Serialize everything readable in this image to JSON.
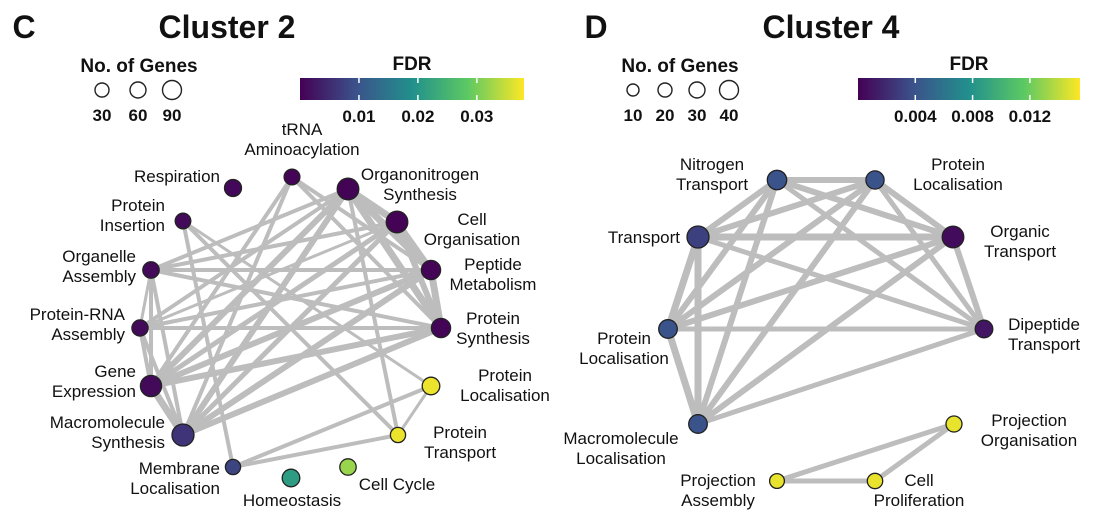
{
  "colors": {
    "viridis": [
      "#440154",
      "#3b528b",
      "#21908c",
      "#5dc963",
      "#fde725"
    ],
    "edge": "#bdbdbd"
  },
  "panels": [
    {
      "letter": "C",
      "title": "Cluster 2",
      "size_legend": {
        "title": "No. of Genes",
        "values": [
          "30",
          "60",
          "90"
        ]
      },
      "fdr_legend": {
        "title": "FDR",
        "ticks": [
          "0.01",
          "0.02",
          "0.03"
        ],
        "range": [
          0,
          0.038
        ]
      },
      "nodes": [
        {
          "id": "trna",
          "label": [
            "tRNA",
            "Aminoacylation"
          ],
          "fdr": 0.0005,
          "genes": 30
        },
        {
          "id": "respiration",
          "label": [
            "Respiration"
          ],
          "fdr": 0.0008,
          "genes": 40
        },
        {
          "id": "organonitrogen",
          "label": [
            "Organonitrogen",
            "Synthesis"
          ],
          "fdr": 0.0003,
          "genes": 90
        },
        {
          "id": "protein_insertion",
          "label": [
            "Protein",
            "Insertion"
          ],
          "fdr": 0.001,
          "genes": 28
        },
        {
          "id": "cell_organisation",
          "label": [
            "Cell",
            "Organisation"
          ],
          "fdr": 0.0002,
          "genes": 90
        },
        {
          "id": "organelle_assembly",
          "label": [
            "Organelle",
            "Assembly"
          ],
          "fdr": 0.001,
          "genes": 35
        },
        {
          "id": "peptide_metabolism",
          "label": [
            "Peptide",
            "Metabolism"
          ],
          "fdr": 0.0005,
          "genes": 60
        },
        {
          "id": "protein_rna_assembly",
          "label": [
            "Protein-RNA",
            "Assembly"
          ],
          "fdr": 0.001,
          "genes": 33
        },
        {
          "id": "protein_synthesis",
          "label": [
            "Protein",
            "Synthesis"
          ],
          "fdr": 0.0005,
          "genes": 60
        },
        {
          "id": "gene_expression",
          "label": [
            "Gene",
            "Expression"
          ],
          "fdr": 0.001,
          "genes": 85
        },
        {
          "id": "protein_localisation",
          "label": [
            "Protein",
            "Localisation"
          ],
          "fdr": 0.037,
          "genes": 45
        },
        {
          "id": "macromolecule_synthesis",
          "label": [
            "Macromolecule",
            "Synthesis"
          ],
          "fdr": 0.006,
          "genes": 95
        },
        {
          "id": "protein_transport",
          "label": [
            "Protein",
            "Transport"
          ],
          "fdr": 0.037,
          "genes": 25
        },
        {
          "id": "membrane_localisation",
          "label": [
            "Membrane",
            "Localisation"
          ],
          "fdr": 0.008,
          "genes": 25
        },
        {
          "id": "homeostasis",
          "label": [
            "Homeostasis"
          ],
          "fdr": 0.021,
          "genes": 45
        },
        {
          "id": "cell_cycle",
          "label": [
            "Cell Cycle"
          ],
          "fdr": 0.032,
          "genes": 35
        }
      ],
      "edges": [
        [
          "organonitrogen",
          "cell_organisation",
          7
        ],
        [
          "organonitrogen",
          "peptide_metabolism",
          7
        ],
        [
          "organonitrogen",
          "protein_synthesis",
          7
        ],
        [
          "organonitrogen",
          "gene_expression",
          6
        ],
        [
          "organonitrogen",
          "macromolecule_synthesis",
          6
        ],
        [
          "organonitrogen",
          "organelle_assembly",
          4
        ],
        [
          "organonitrogen",
          "protein_rna_assembly",
          4
        ],
        [
          "organonitrogen",
          "protein_transport",
          4
        ],
        [
          "cell_organisation",
          "peptide_metabolism",
          6
        ],
        [
          "cell_organisation",
          "protein_synthesis",
          6
        ],
        [
          "cell_organisation",
          "gene_expression",
          5
        ],
        [
          "cell_organisation",
          "macromolecule_synthesis",
          5
        ],
        [
          "cell_organisation",
          "organelle_assembly",
          4
        ],
        [
          "peptide_metabolism",
          "protein_synthesis",
          7
        ],
        [
          "peptide_metabolism",
          "gene_expression",
          6
        ],
        [
          "peptide_metabolism",
          "macromolecule_synthesis",
          6
        ],
        [
          "peptide_metabolism",
          "organelle_assembly",
          4
        ],
        [
          "peptide_metabolism",
          "protein_rna_assembly",
          4
        ],
        [
          "protein_synthesis",
          "gene_expression",
          6
        ],
        [
          "protein_synthesis",
          "macromolecule_synthesis",
          6
        ],
        [
          "protein_synthesis",
          "organelle_assembly",
          4
        ],
        [
          "protein_synthesis",
          "protein_rna_assembly",
          4
        ],
        [
          "gene_expression",
          "macromolecule_synthesis",
          7
        ],
        [
          "gene_expression",
          "organelle_assembly",
          4
        ],
        [
          "gene_expression",
          "protein_rna_assembly",
          4
        ],
        [
          "organelle_assembly",
          "macromolecule_synthesis",
          4
        ],
        [
          "protein_rna_assembly",
          "macromolecule_synthesis",
          4
        ],
        [
          "organelle_assembly",
          "protein_rna_assembly",
          3
        ],
        [
          "trna",
          "peptide_metabolism",
          4
        ],
        [
          "trna",
          "protein_synthesis",
          4
        ],
        [
          "trna",
          "gene_expression",
          4
        ],
        [
          "trna",
          "macromolecule_synthesis",
          4
        ],
        [
          "protein_insertion",
          "membrane_localisation",
          4
        ],
        [
          "protein_insertion",
          "protein_transport",
          4
        ],
        [
          "protein_insertion",
          "protein_localisation",
          3
        ],
        [
          "membrane_localisation",
          "protein_localisation",
          4
        ],
        [
          "membrane_localisation",
          "protein_transport",
          4
        ],
        [
          "protein_localisation",
          "protein_transport",
          3
        ],
        [
          "organelle_assembly",
          "cell_organisation",
          3
        ],
        [
          "protein_rna_assembly",
          "cell_organisation",
          3
        ]
      ]
    },
    {
      "letter": "D",
      "title": "Cluster 4",
      "size_legend": {
        "title": "No. of Genes",
        "values": [
          "10",
          "20",
          "30",
          "40"
        ]
      },
      "fdr_legend": {
        "title": "FDR",
        "ticks": [
          "0.004",
          "0.008",
          "0.012"
        ],
        "range": [
          0,
          0.0155
        ]
      },
      "nodes": [
        {
          "id": "nitrogen_transport",
          "label": [
            "Nitrogen",
            "Transport"
          ],
          "fdr": 0.004,
          "genes": 28
        },
        {
          "id": "protein_localisation_top",
          "label": [
            "Protein",
            "Localisation"
          ],
          "fdr": 0.004,
          "genes": 22
        },
        {
          "id": "transport",
          "label": [
            "Transport"
          ],
          "fdr": 0.003,
          "genes": 42
        },
        {
          "id": "organic_transport",
          "label": [
            "Organic",
            "Transport"
          ],
          "fdr": 0.0005,
          "genes": 40
        },
        {
          "id": "protein_localisation_left",
          "label": [
            "Protein",
            "Localisation"
          ],
          "fdr": 0.004,
          "genes": 24
        },
        {
          "id": "dipeptide_transport",
          "label": [
            "Dipeptide",
            "Transport"
          ],
          "fdr": 0.001,
          "genes": 20
        },
        {
          "id": "macromolecule_localisation",
          "label": [
            "Macromolecule",
            "Localisation"
          ],
          "fdr": 0.004,
          "genes": 24
        },
        {
          "id": "projection_organisation",
          "label": [
            "Projection",
            "Organisation"
          ],
          "fdr": 0.015,
          "genes": 14
        },
        {
          "id": "projection_assembly",
          "label": [
            "Projection",
            "Assembly"
          ],
          "fdr": 0.015,
          "genes": 10
        },
        {
          "id": "cell_proliferation",
          "label": [
            "Cell",
            "Proliferation"
          ],
          "fdr": 0.015,
          "genes": 12
        }
      ],
      "edges": [
        [
          "nitrogen_transport",
          "protein_localisation_top",
          6
        ],
        [
          "nitrogen_transport",
          "transport",
          6
        ],
        [
          "nitrogen_transport",
          "organic_transport",
          6
        ],
        [
          "nitrogen_transport",
          "protein_localisation_left",
          6
        ],
        [
          "nitrogen_transport",
          "dipeptide_transport",
          5
        ],
        [
          "nitrogen_transport",
          "macromolecule_localisation",
          6
        ],
        [
          "protein_localisation_top",
          "transport",
          6
        ],
        [
          "protein_localisation_top",
          "organic_transport",
          6
        ],
        [
          "protein_localisation_top",
          "protein_localisation_left",
          6
        ],
        [
          "protein_localisation_top",
          "dipeptide_transport",
          5
        ],
        [
          "protein_localisation_top",
          "macromolecule_localisation",
          6
        ],
        [
          "transport",
          "organic_transport",
          7
        ],
        [
          "transport",
          "protein_localisation_left",
          7
        ],
        [
          "transport",
          "dipeptide_transport",
          5
        ],
        [
          "transport",
          "macromolecule_localisation",
          7
        ],
        [
          "organic_transport",
          "protein_localisation_left",
          6
        ],
        [
          "organic_transport",
          "dipeptide_transport",
          6
        ],
        [
          "organic_transport",
          "macromolecule_localisation",
          6
        ],
        [
          "protein_localisation_left",
          "dipeptide_transport",
          5
        ],
        [
          "protein_localisation_left",
          "macromolecule_localisation",
          7
        ],
        [
          "dipeptide_transport",
          "macromolecule_localisation",
          5
        ],
        [
          "projection_organisation",
          "projection_assembly",
          5
        ],
        [
          "projection_organisation",
          "cell_proliferation",
          5
        ],
        [
          "projection_assembly",
          "cell_proliferation",
          5
        ]
      ]
    }
  ]
}
